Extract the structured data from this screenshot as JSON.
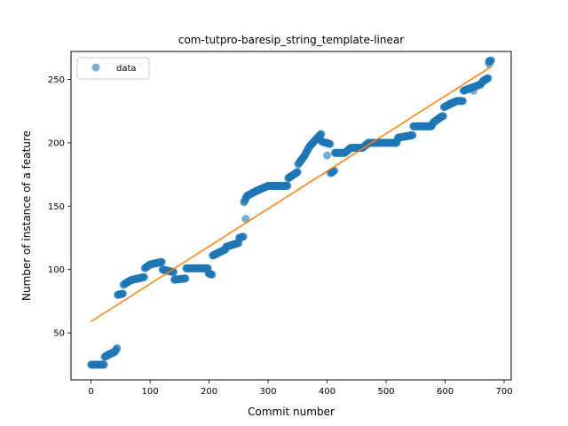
{
  "chart_data": {
    "type": "scatter",
    "title": "com-tutpro-baresip_string_template-linear",
    "xlabel": "Commit number",
    "ylabel": "Number of instance of a feature",
    "xlim": [
      -34,
      712
    ],
    "ylim": [
      13,
      272
    ],
    "xticks": [
      0,
      100,
      200,
      300,
      400,
      500,
      600,
      700
    ],
    "yticks": [
      50,
      100,
      150,
      200,
      250
    ],
    "grid": false,
    "legend": {
      "placement": "top-left",
      "entries": [
        "data"
      ]
    },
    "colors": {
      "data": "#1f77b4",
      "fit": "#ff7f0e"
    },
    "series": [
      {
        "name": "data",
        "kind": "points",
        "anchors": [
          [
            0,
            25
          ],
          [
            22,
            25
          ],
          [
            23,
            31
          ],
          [
            30,
            33
          ],
          [
            40,
            35
          ],
          [
            44,
            38
          ],
          [
            45,
            80
          ],
          [
            54,
            81
          ],
          [
            55,
            88
          ],
          [
            65,
            91
          ],
          [
            70,
            92
          ],
          [
            90,
            94
          ],
          [
            91,
            101
          ],
          [
            100,
            104
          ],
          [
            120,
            106
          ],
          [
            121,
            100
          ],
          [
            140,
            98
          ],
          [
            141,
            92
          ],
          [
            160,
            93
          ],
          [
            161,
            101
          ],
          [
            198,
            101
          ],
          [
            199,
            97
          ],
          [
            205,
            96
          ],
          [
            206,
            111
          ],
          [
            228,
            116
          ],
          [
            229,
            118
          ],
          [
            250,
            121
          ],
          [
            251,
            125
          ],
          [
            258,
            126
          ],
          [
            259,
            153
          ],
          [
            264,
            158
          ],
          [
            280,
            162
          ],
          [
            300,
            166
          ],
          [
            333,
            166
          ],
          [
            334,
            172
          ],
          [
            350,
            177
          ],
          [
            351,
            183
          ],
          [
            362,
            190
          ],
          [
            370,
            197
          ],
          [
            390,
            207
          ],
          [
            391,
            201
          ],
          [
            405,
            199
          ],
          [
            406,
            176
          ],
          [
            412,
            178
          ],
          [
            413,
            192
          ],
          [
            430,
            192
          ],
          [
            440,
            196
          ],
          [
            460,
            196
          ],
          [
            470,
            200
          ],
          [
            518,
            200
          ],
          [
            520,
            204
          ],
          [
            545,
            206
          ],
          [
            546,
            213
          ],
          [
            577,
            213
          ],
          [
            580,
            216
          ],
          [
            595,
            221
          ],
          [
            597,
            221
          ],
          [
            598,
            228
          ],
          [
            610,
            231
          ],
          [
            620,
            233
          ],
          [
            630,
            233
          ],
          [
            631,
            241
          ],
          [
            660,
            246
          ],
          [
            665,
            249
          ],
          [
            673,
            251
          ],
          [
            674,
            264
          ],
          [
            678,
            265
          ]
        ],
        "extra_points": [
          [
            262,
            140
          ],
          [
            400,
            190
          ],
          [
            675,
            262
          ],
          [
            648,
            241
          ],
          [
            612,
            231
          ]
        ]
      },
      {
        "name": "",
        "kind": "linear-fit",
        "x": [
          0,
          678
        ],
        "y": [
          59,
          260
        ]
      }
    ]
  }
}
